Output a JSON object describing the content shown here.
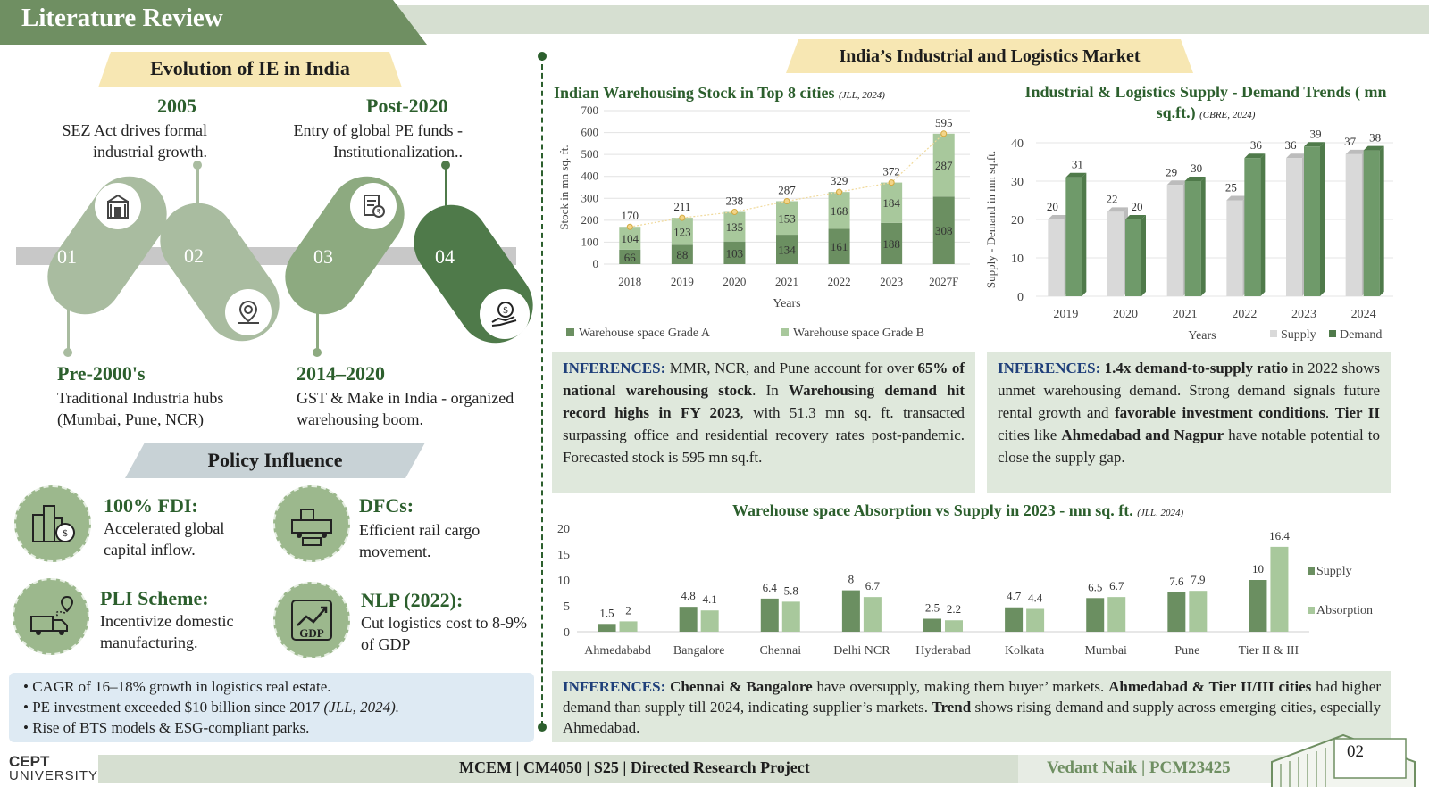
{
  "header": {
    "title": "Literature Review"
  },
  "evolution": {
    "title": "Evolution of IE in India",
    "items": [
      {
        "num": "01",
        "year": "Pre-2000's",
        "desc": "Traditional Industria hubs (Mumbai, Pune, NCR)",
        "icon": "gateway-icon"
      },
      {
        "num": "02",
        "year": "2005",
        "desc": "SEZ Act drives formal industrial growth.",
        "icon": "location-badge-icon"
      },
      {
        "num": "03",
        "year": "2014–2020",
        "desc": "GST & Make in India - organized warehousing boom.",
        "icon": "gst-document-icon"
      },
      {
        "num": "04",
        "year": "Post-2020",
        "desc": "Entry of global PE funds - Institutionalization..",
        "icon": "money-hand-icon"
      }
    ]
  },
  "policy": {
    "title": "Policy Influence",
    "items": [
      {
        "title": "100% FDI:",
        "desc": "Accelerated global capital inflow.",
        "icon": "city-money-icon"
      },
      {
        "title": "DFCs:",
        "desc": "Efficient rail cargo movement.",
        "icon": "freight-train-icon"
      },
      {
        "title": "PLI Scheme:",
        "desc": "Incentivize domestic manufacturing.",
        "icon": "delivery-truck-icon"
      },
      {
        "title": "NLP (2022):",
        "desc": "Cut logistics cost to 8-9% of GDP",
        "icon": "gdp-growth-icon",
        "icon_text": "GDP"
      }
    ]
  },
  "bullets": [
    "CAGR of 16–18% growth in logistics real estate.",
    "PE investment exceeded $10 billion since 2017",
    "Rise of BTS models & ESG-compliant parks."
  ],
  "bullet_cite": "(JLL, 2024).",
  "market": {
    "title": "India’s Industrial and Logistics Market"
  },
  "colors": {
    "dark_green": "#6b8f61",
    "light_green": "#a8c89c",
    "supply_grey": "#d9d9d9",
    "demand_green": "#6f9a6a",
    "infer_blue": "#1f3f7a"
  },
  "chart_data": [
    {
      "type": "bar",
      "stacked": true,
      "title": "Indian Warehousing Stock in Top 8 cities",
      "cite": "(JLL, 2024)",
      "xlabel": "Years",
      "ylabel": "Stock in mn sq. ft.",
      "ylim": [
        0,
        700
      ],
      "yticks": [
        0,
        100,
        200,
        300,
        400,
        500,
        600,
        700
      ],
      "categories": [
        "2018",
        "2019",
        "2020",
        "2021",
        "2022",
        "2023",
        "2027F"
      ],
      "series": [
        {
          "name": "Warehouse space  Grade A",
          "values": [
            66,
            88,
            103,
            134,
            161,
            188,
            308
          ]
        },
        {
          "name": "Warehouse space  Grade B",
          "values": [
            104,
            123,
            135,
            153,
            168,
            184,
            287
          ]
        }
      ],
      "totals": [
        170,
        211,
        238,
        287,
        329,
        372,
        595
      ]
    },
    {
      "type": "bar",
      "title": "Industrial & Logistics Supply - Demand Trends ( mn sq.ft.)",
      "cite": "(CBRE, 2024)",
      "xlabel": "Years",
      "ylabel": "Supply - Demand in mn sq.ft.",
      "ylim": [
        0,
        40
      ],
      "yticks": [
        0,
        10,
        20,
        30,
        40
      ],
      "categories": [
        "2019",
        "2020",
        "2021",
        "2022",
        "2023",
        "2024"
      ],
      "series": [
        {
          "name": "Supply",
          "values": [
            20,
            22,
            29,
            25,
            36,
            37
          ]
        },
        {
          "name": "Demand",
          "values": [
            31,
            20,
            30,
            36,
            39,
            38
          ]
        }
      ]
    },
    {
      "type": "bar",
      "title": "Warehouse space Absorption vs Supply in 2023 - mn sq. ft.",
      "cite": "(JLL, 2024)",
      "ylim": [
        0,
        20
      ],
      "yticks": [
        0,
        5,
        10,
        15,
        20
      ],
      "categories": [
        "Ahmedababd",
        "Bangalore",
        "Chennai",
        "Delhi NCR",
        "Hyderabad",
        "Kolkata",
        "Mumbai",
        "Pune",
        "Tier II  & III"
      ],
      "series": [
        {
          "name": "Supply",
          "values": [
            1.5,
            4.8,
            6.4,
            8,
            2.5,
            4.7,
            6.5,
            7.6,
            10
          ]
        },
        {
          "name": "Absorption",
          "values": [
            2,
            4.1,
            5.8,
            6.7,
            2.2,
            4.4,
            6.7,
            7.9,
            16.4
          ]
        }
      ]
    }
  ],
  "inferences": {
    "label": "INFERENCES:",
    "one": {
      "p1": " MMR, NCR, and Pune account for over ",
      "b1": "65% of national warehousing stock",
      "p2": ". In ",
      "b2": "Warehousing demand hit record highs in FY 2023",
      "p3": ", with 51.3 mn sq. ft. transacted surpassing office and residential recovery rates post-pandemic. Forecasted stock is 595 mn sq.ft."
    },
    "two": {
      "p1": " ",
      "b1": "1.4x demand-to-supply ratio",
      "p2": " in 2022 shows unmet warehousing demand. Strong demand signals future rental growth and ",
      "b2": "favorable investment conditions",
      "p3": ". ",
      "b3": "Tier II",
      "p4": " cities like ",
      "b4": "Ahmedabad and Nagpur",
      "p5": " have notable potential to close the supply gap."
    },
    "three": {
      "p1": " ",
      "b1": "Chennai & Bangalore",
      "p2": " have oversupply, making them buyer’ markets. ",
      "b2": "Ahmedabad & Tier II/III cities",
      "p3": " had higher demand than supply till 2024, indicating supplier’s markets. ",
      "b3": "Trend",
      "p4": " shows rising demand and supply across emerging cities, especially Ahmedabad."
    }
  },
  "footer": {
    "logo_line1": "CEPT",
    "logo_line2": "UNIVERSITY",
    "course": "MCEM  |  CM4050  |  S25  |  Directed Research Project",
    "author": "Vedant Naik | PCM23425",
    "page": "02"
  }
}
